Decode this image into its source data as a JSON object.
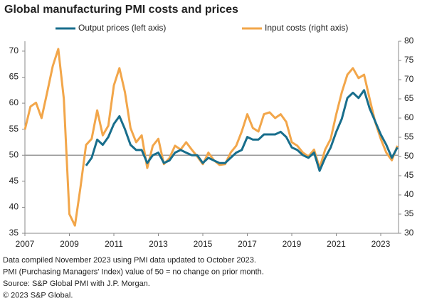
{
  "chart_data": {
    "type": "line",
    "title": "Global manufacturing PMI costs and prices",
    "x": [
      2007,
      2007.25,
      2007.5,
      2007.75,
      2008,
      2008.25,
      2008.5,
      2008.75,
      2009,
      2009.25,
      2009.5,
      2009.75,
      2010,
      2010.25,
      2010.5,
      2010.75,
      2011,
      2011.25,
      2011.5,
      2011.75,
      2012,
      2012.25,
      2012.5,
      2012.75,
      2013,
      2013.25,
      2013.5,
      2013.75,
      2014,
      2014.25,
      2014.5,
      2014.75,
      2015,
      2015.25,
      2015.5,
      2015.75,
      2016,
      2016.25,
      2016.5,
      2016.75,
      2017,
      2017.25,
      2017.5,
      2017.75,
      2018,
      2018.25,
      2018.5,
      2018.75,
      2019,
      2019.25,
      2019.5,
      2019.75,
      2020,
      2020.25,
      2020.5,
      2020.75,
      2021,
      2021.25,
      2021.5,
      2021.75,
      2022,
      2022.25,
      2022.5,
      2022.75,
      2023,
      2023.25,
      2023.5,
      2023.75
    ],
    "xlim": [
      2007,
      2023.8
    ],
    "xticks": [
      2007,
      2009,
      2011,
      2013,
      2015,
      2017,
      2019,
      2021,
      2023
    ],
    "ylim": [
      35,
      71.9
    ],
    "yticks": [
      35,
      40,
      45,
      50,
      55,
      60,
      65,
      70
    ],
    "y2lim": [
      30,
      80
    ],
    "y2ticks": [
      30,
      35,
      40,
      45,
      50,
      55,
      60,
      65,
      70,
      75,
      80
    ],
    "reference_line": 50,
    "series": [
      {
        "name": "Output prices (left axis)",
        "color": "#186e8c",
        "axis": "y",
        "values": [
          null,
          null,
          null,
          null,
          null,
          null,
          null,
          null,
          null,
          null,
          null,
          48,
          49.5,
          53,
          52,
          53.5,
          56,
          57.5,
          55,
          52,
          51,
          51,
          48.5,
          50,
          50.5,
          48.5,
          49,
          50.5,
          51,
          50.5,
          50,
          50,
          48.5,
          49.5,
          49,
          48.5,
          48.5,
          49.5,
          50.5,
          51,
          53.5,
          53,
          53,
          54,
          54,
          54,
          54.5,
          53.5,
          51.5,
          51,
          50,
          49.5,
          50.5,
          47,
          49.5,
          51.5,
          54.5,
          57,
          61,
          62,
          61,
          62.5,
          59,
          56.5,
          54,
          52,
          49.5,
          51.5
        ]
      },
      {
        "name": "Input costs (right axis)",
        "color": "#f2a64a",
        "axis": "y2",
        "values": [
          57,
          63,
          64,
          60,
          66.7,
          73.5,
          78,
          65,
          35,
          32,
          42,
          53,
          54.6,
          62,
          55.5,
          58,
          68.5,
          73,
          66.7,
          57.4,
          53.7,
          55.5,
          47,
          52.8,
          54.6,
          48,
          49.6,
          52.8,
          51.8,
          53.7,
          51.8,
          50,
          48,
          51,
          49,
          47.8,
          48,
          51,
          52.8,
          56.5,
          61,
          57.4,
          56.5,
          61,
          61.5,
          60,
          61,
          59,
          53.7,
          52.8,
          51,
          50,
          51.8,
          47,
          51.8,
          54.6,
          61,
          66.7,
          71.3,
          73,
          70.4,
          71.3,
          65,
          59,
          54.6,
          51,
          49,
          52.8
        ]
      }
    ],
    "notes": [
      "Data compiled November 2023 using PMI data updated to October 2023.",
      "PMI (Purchasing Managers' Index) value of 50 = no change on prior month.",
      "Source: S&P Global PMI with J.P. Morgan.",
      "© 2023 S&P Global."
    ]
  }
}
